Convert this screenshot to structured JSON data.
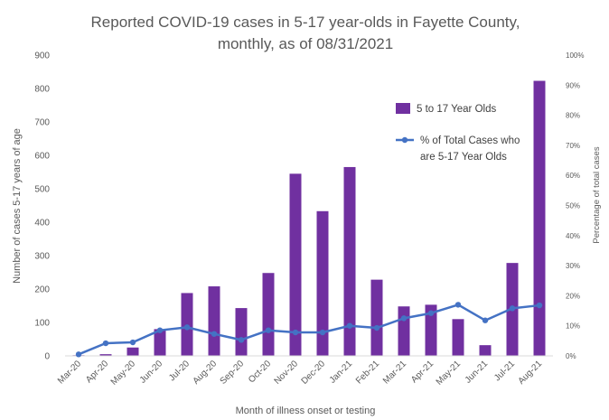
{
  "chart_data": {
    "type": "bar",
    "title_line1": "Reported COVID-19 cases in 5-17 year-olds in Fayette County,",
    "title_line2": "monthly, as of 08/31/2021",
    "xlabel": "Month of illness onset or testing",
    "ylabel": "Number of cases 5-17 years of age",
    "y2label": "Percentage of total cases",
    "categories": [
      "Mar-20",
      "Apr-20",
      "May-20",
      "Jun-20",
      "Jul-20",
      "Aug-20",
      "Sep-20",
      "Oct-20",
      "Nov-20",
      "Dec-20",
      "Jan-21",
      "Feb-21",
      "Mar-21",
      "Apr-21",
      "May-21",
      "Jun-21",
      "Jul-21",
      "Aug-21"
    ],
    "ylim": [
      0,
      900
    ],
    "yticks": [
      0,
      100,
      200,
      300,
      400,
      500,
      600,
      700,
      800,
      900
    ],
    "y2lim": [
      0,
      100
    ],
    "y2ticks": [
      "0%",
      "10%",
      "20%",
      "30%",
      "40%",
      "50%",
      "60%",
      "70%",
      "80%",
      "90%",
      "100%"
    ],
    "series": [
      {
        "name": "5 to 17 Year Olds",
        "type": "bar",
        "color": "#7030A0",
        "values": [
          2,
          5,
          25,
          80,
          188,
          208,
          143,
          248,
          545,
          433,
          565,
          228,
          148,
          153,
          110,
          32,
          278,
          823
        ]
      },
      {
        "name": "% of Total Cases who are 5-17 Year Olds",
        "name_line1": "% of Total Cases who",
        "name_line2": "are 5-17 Year Olds",
        "type": "line",
        "axis": "right",
        "color": "#4472C4",
        "values": [
          0.5,
          4.2,
          4.5,
          8.5,
          9.5,
          7.3,
          5.3,
          8.5,
          7.8,
          7.8,
          10.0,
          9.3,
          12.5,
          14.2,
          17.0,
          11.8,
          15.8,
          16.8
        ]
      }
    ],
    "legend": "top-right, inside plot",
    "grid": false
  }
}
